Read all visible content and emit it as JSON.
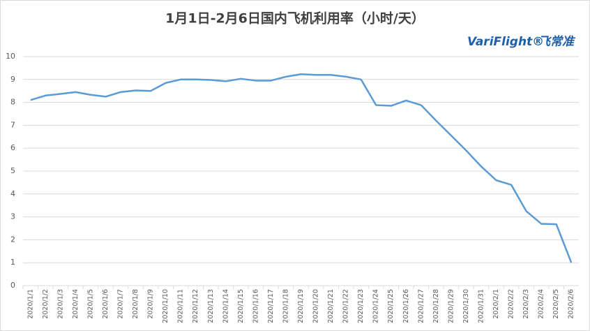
{
  "chart_data": {
    "type": "line",
    "title": "1月1日-2月6日国内飞机利用率（小时/天）",
    "logo_text": "VariFlight®",
    "logo_cn": "飞常准",
    "categories": [
      "2020/1/1",
      "2020/1/2",
      "2020/1/3",
      "2020/1/4",
      "2020/1/5",
      "2020/1/6",
      "2020/1/7",
      "2020/1/8",
      "2020/1/9",
      "2020/1/10",
      "2020/1/11",
      "2020/1/12",
      "2020/1/13",
      "2020/1/14",
      "2020/1/15",
      "2020/1/16",
      "2020/1/17",
      "2020/1/18",
      "2020/1/19",
      "2020/1/20",
      "2020/1/21",
      "2020/1/22",
      "2020/1/23",
      "2020/1/24",
      "2020/1/25",
      "2020/1/26",
      "2020/1/27",
      "2020/1/28",
      "2020/1/29",
      "2020/1/30",
      "2020/1/31",
      "2020/2/1",
      "2020/2/2",
      "2020/2/3",
      "2020/2/4",
      "2020/2/5",
      "2020/2/6"
    ],
    "values": [
      8.1,
      8.3,
      8.37,
      8.45,
      8.33,
      8.25,
      8.45,
      8.52,
      8.5,
      8.85,
      9.0,
      9.0,
      8.98,
      8.92,
      9.03,
      8.95,
      8.95,
      9.12,
      9.23,
      9.2,
      9.2,
      9.12,
      9.0,
      7.88,
      7.85,
      8.08,
      7.88,
      7.2,
      6.55,
      5.9,
      5.2,
      4.6,
      4.4,
      3.25,
      2.7,
      2.68,
      1.0
    ],
    "color": "#5b9bd5",
    "ylim": [
      0,
      10
    ],
    "yticks": [
      0,
      1,
      2,
      3,
      4,
      5,
      6,
      7,
      8,
      9,
      10
    ],
    "grid": true
  }
}
